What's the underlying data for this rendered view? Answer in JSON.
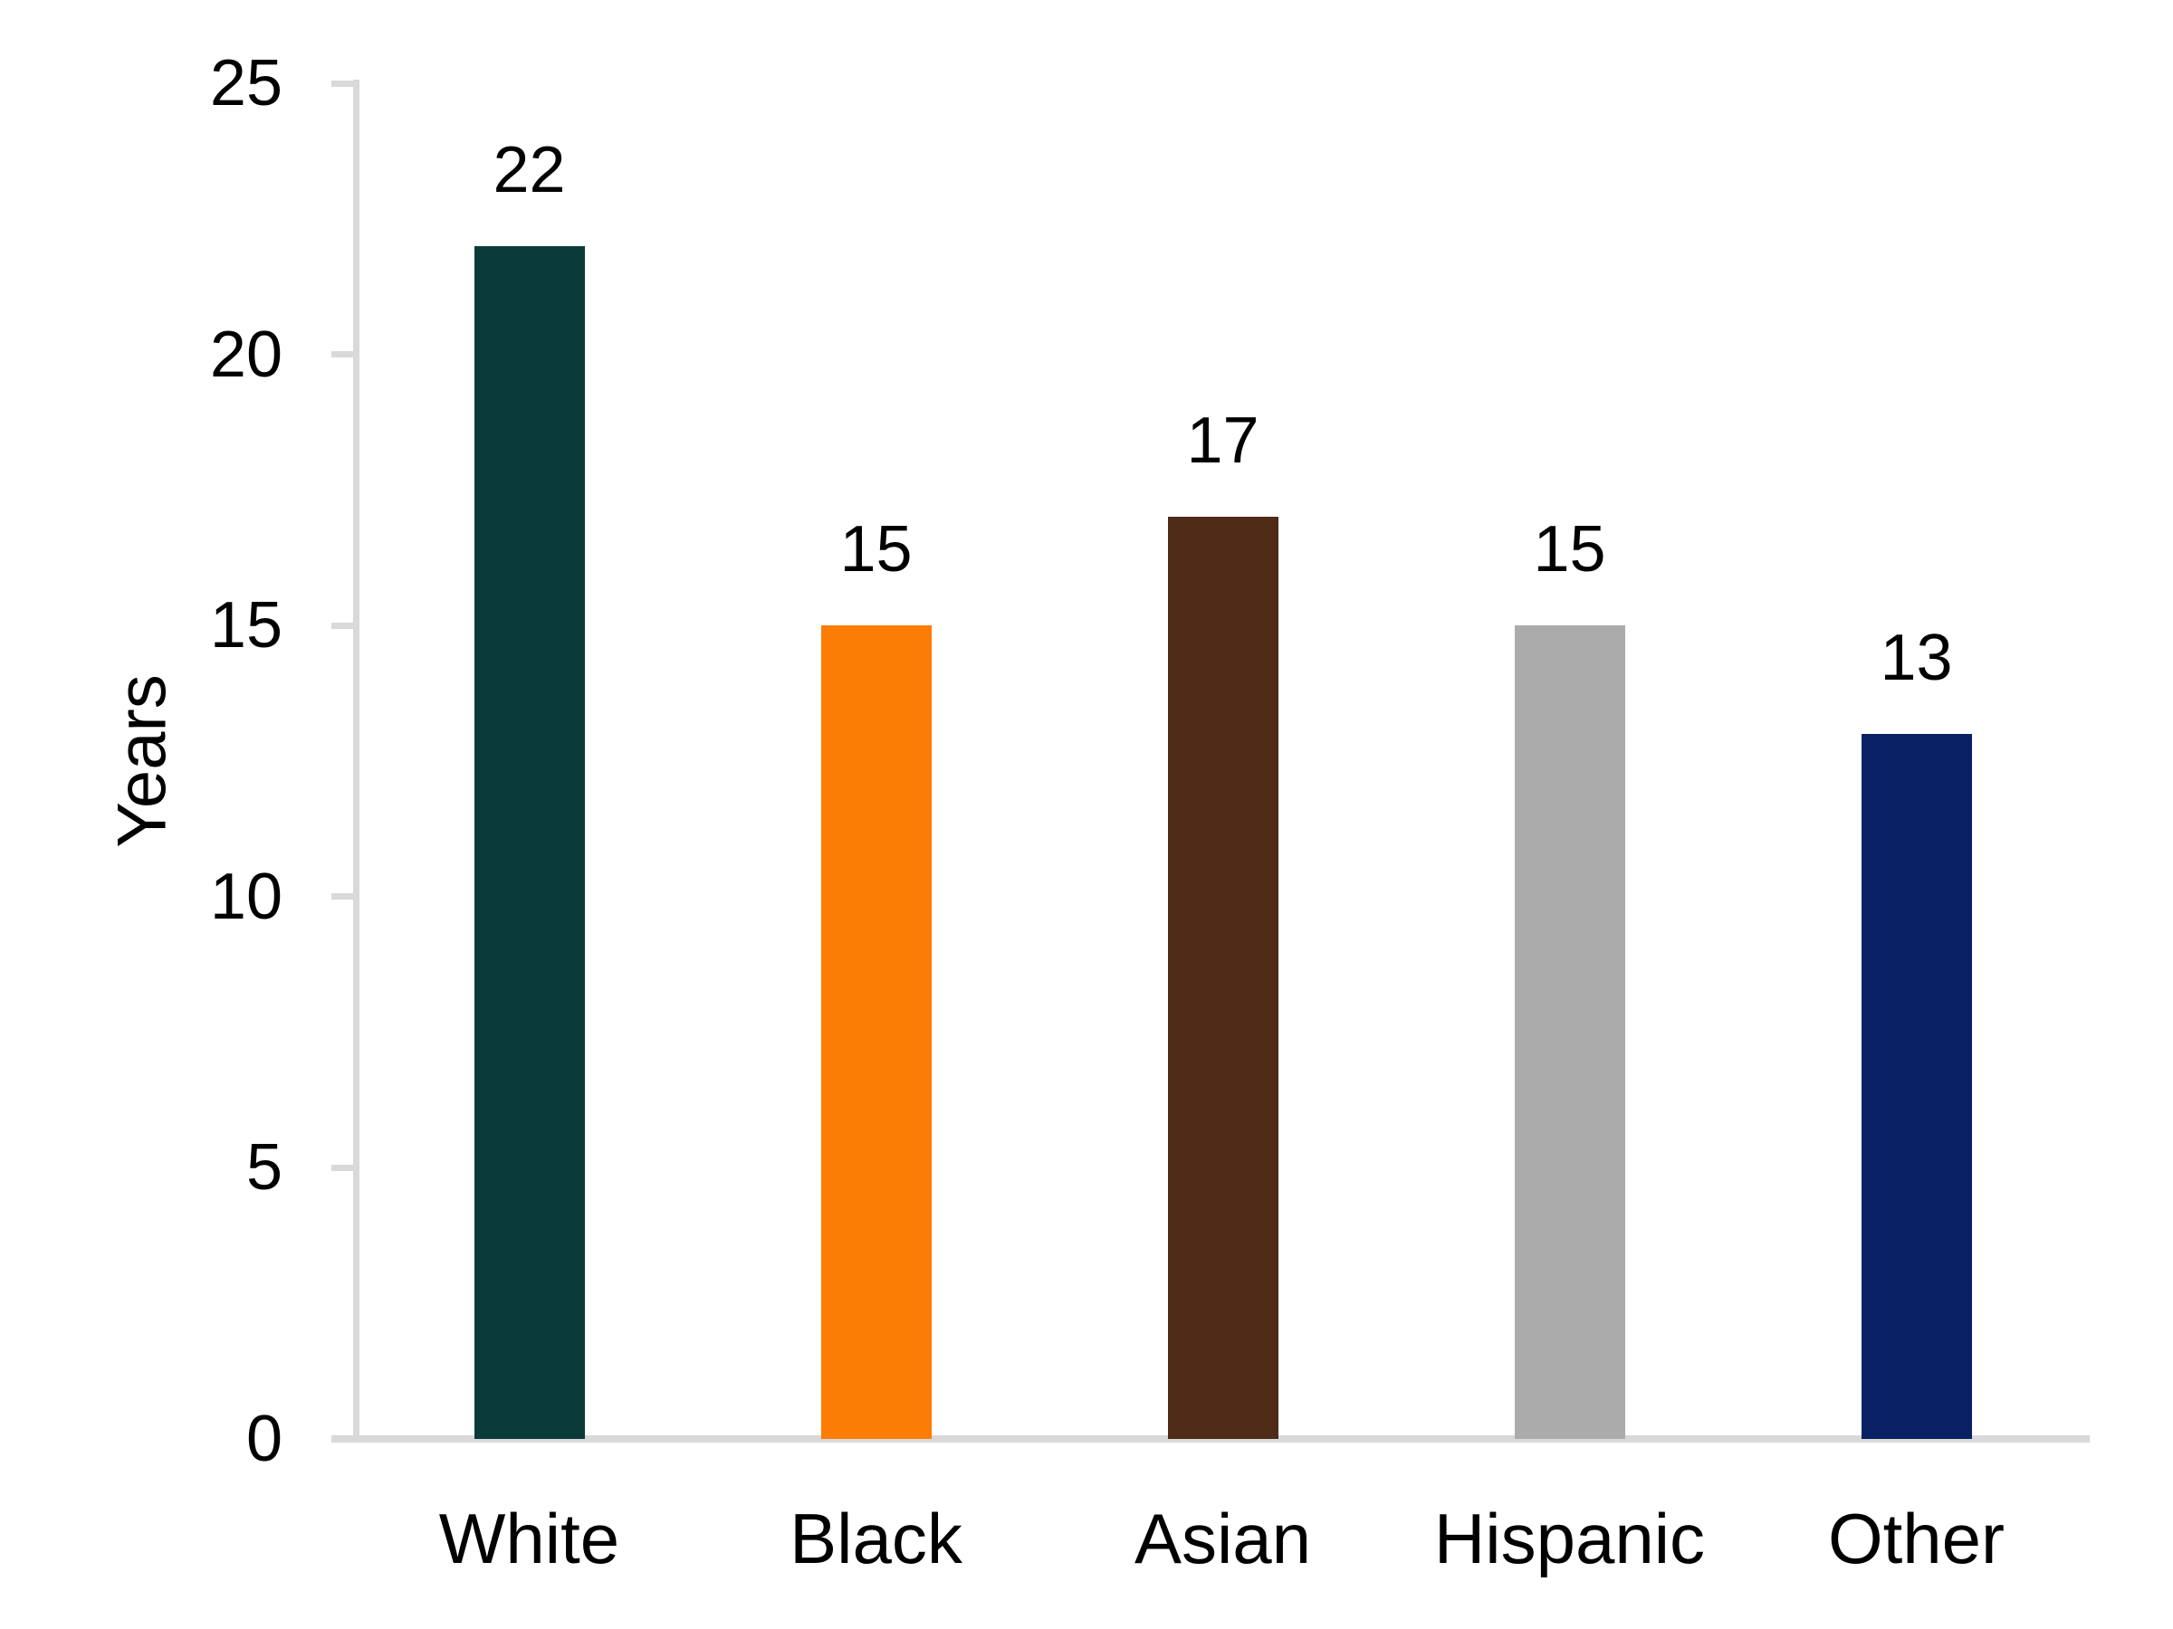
{
  "chart_data": {
    "type": "bar",
    "categories": [
      "White",
      "Black",
      "Asian",
      "Hispanic",
      "Other"
    ],
    "values": [
      22,
      15,
      17,
      15,
      13
    ],
    "value_labels": [
      "22",
      "15",
      "17",
      "15",
      "13"
    ],
    "bar_colors": [
      "#0B3B38",
      "#FB7D05",
      "#4E2A17",
      "#ABABAB",
      "#0A2064"
    ],
    "xlabel": "",
    "ylabel": "Years",
    "ylim": [
      0,
      25
    ],
    "yticks": [
      0,
      5,
      10,
      15,
      20,
      25
    ],
    "ytick_labels": [
      "0",
      "5",
      "10",
      "15",
      "20",
      "25"
    ],
    "grid": false,
    "legend_position": "none",
    "axis_color": "#D9D9D9",
    "text_color": "#000000",
    "background_color": "#FFFFFF"
  }
}
